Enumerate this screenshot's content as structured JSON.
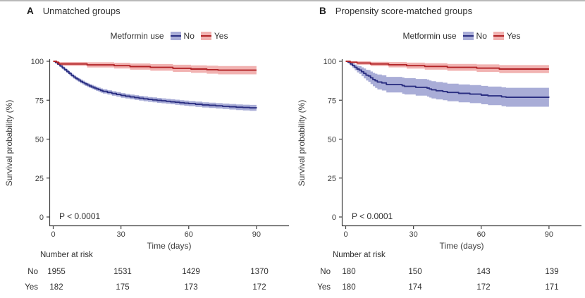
{
  "colors": {
    "no_line": "#2b2f82",
    "no_band": "#a9add7",
    "yes_line": "#b22427",
    "yes_band": "#f1b2b1",
    "text": "#3d3d3d",
    "axis": "#404040"
  },
  "legend": {
    "title": "Metformin use",
    "items": [
      {
        "label": "No"
      },
      {
        "label": "Yes"
      }
    ]
  },
  "panels": [
    {
      "label": "A",
      "title": "Unmatched groups",
      "p_value": "P < 0.0001",
      "risk": {
        "header": "Number at risk",
        "rows": [
          {
            "label": "No",
            "values": [
              "1955",
              "1531",
              "1429",
              "1370"
            ]
          },
          {
            "label": "Yes",
            "values": [
              "182",
              "175",
              "173",
              "172"
            ]
          }
        ]
      }
    },
    {
      "label": "B",
      "title": "Propensity score-matched groups",
      "p_value": "P < 0.0001",
      "risk": {
        "header": "Number at risk",
        "rows": [
          {
            "label": "No",
            "values": [
              "180",
              "150",
              "143",
              "139"
            ]
          },
          {
            "label": "Yes",
            "values": [
              "180",
              "174",
              "172",
              "171"
            ]
          }
        ]
      }
    }
  ],
  "chart_data": [
    {
      "type": "line",
      "subtype": "kaplan-meier-step",
      "title": "Unmatched groups",
      "xlabel": "Time (days)",
      "ylabel": "Survival probability (%)",
      "xlim": [
        0,
        90
      ],
      "ylim": [
        0,
        100
      ],
      "x_ticks": [
        0,
        30,
        60,
        90
      ],
      "y_ticks": [
        0,
        25,
        50,
        75,
        100
      ],
      "p_value": "P < 0.0001",
      "grid": false,
      "legend_position": "top",
      "series": [
        {
          "name": "No",
          "line_color": "#2b2f82",
          "band_color": "#a9add7",
          "steps": [
            [
              0,
              100
            ],
            [
              1,
              99.2
            ],
            [
              2,
              98.2
            ],
            [
              3,
              97
            ],
            [
              4,
              95.8
            ],
            [
              5,
              94.6
            ],
            [
              6,
              93.4
            ],
            [
              7,
              92.2
            ],
            [
              8,
              91
            ],
            [
              9,
              89.9
            ],
            [
              10,
              88.9
            ],
            [
              11,
              88
            ],
            [
              12,
              87.1
            ],
            [
              13,
              86.3
            ],
            [
              14,
              85.5
            ],
            [
              15,
              84.8
            ],
            [
              16,
              84.1
            ],
            [
              17,
              83.5
            ],
            [
              18,
              82.9
            ],
            [
              19,
              82.3
            ],
            [
              20,
              81.8
            ],
            [
              21,
              81.2
            ],
            [
              22,
              80.7
            ],
            [
              24,
              80
            ],
            [
              26,
              79.3
            ],
            [
              28,
              78.7
            ],
            [
              30,
              78.1
            ],
            [
              32,
              77.6
            ],
            [
              34,
              77.1
            ],
            [
              36,
              76.7
            ],
            [
              38,
              76.3
            ],
            [
              40,
              75.9
            ],
            [
              42,
              75.5
            ],
            [
              44,
              75.2
            ],
            [
              46,
              74.9
            ],
            [
              48,
              74.6
            ],
            [
              50,
              74.3
            ],
            [
              52,
              74
            ],
            [
              54,
              73.7
            ],
            [
              56,
              73.4
            ],
            [
              58,
              73.1
            ],
            [
              60,
              72.8
            ],
            [
              63,
              72.4
            ],
            [
              66,
              72
            ],
            [
              69,
              71.7
            ],
            [
              72,
              71.4
            ],
            [
              75,
              71.1
            ],
            [
              78,
              70.8
            ],
            [
              81,
              70.5
            ],
            [
              84,
              70.3
            ],
            [
              87,
              70.1
            ],
            [
              90,
              69.9
            ]
          ],
          "ci_half": [
            [
              0,
              0.2
            ],
            [
              3,
              0.8
            ],
            [
              8,
              1.1
            ],
            [
              15,
              1.3
            ],
            [
              30,
              1.5
            ],
            [
              50,
              1.6
            ],
            [
              70,
              1.7
            ],
            [
              90,
              1.9
            ]
          ]
        },
        {
          "name": "Yes",
          "line_color": "#b22427",
          "band_color": "#f1b2b1",
          "steps": [
            [
              0,
              100
            ],
            [
              1.5,
              99.3
            ],
            [
              2.5,
              98.3
            ],
            [
              15,
              97.7
            ],
            [
              27,
              97.2
            ],
            [
              34,
              96.6
            ],
            [
              43,
              96.1
            ],
            [
              53,
              95.5
            ],
            [
              61,
              95
            ],
            [
              68,
              94.6
            ],
            [
              73,
              94.3
            ],
            [
              90,
              94.3
            ]
          ],
          "ci_half": [
            [
              0,
              0.2
            ],
            [
              2,
              1.2
            ],
            [
              10,
              1.6
            ],
            [
              25,
              1.8
            ],
            [
              40,
              2.1
            ],
            [
              60,
              2.4
            ],
            [
              75,
              2.7
            ],
            [
              90,
              2.7
            ]
          ]
        }
      ]
    },
    {
      "type": "line",
      "subtype": "kaplan-meier-step",
      "title": "Propensity score-matched groups",
      "xlabel": "Time (days)",
      "ylabel": "Survival probability (%)",
      "xlim": [
        0,
        90
      ],
      "ylim": [
        0,
        100
      ],
      "x_ticks": [
        0,
        30,
        60,
        90
      ],
      "y_ticks": [
        0,
        25,
        50,
        75,
        100
      ],
      "p_value": "P < 0.0001",
      "grid": false,
      "legend_position": "top",
      "series": [
        {
          "name": "No",
          "line_color": "#2b2f82",
          "band_color": "#a9add7",
          "steps": [
            [
              0,
              100
            ],
            [
              1,
              99.4
            ],
            [
              2,
              98.3
            ],
            [
              3,
              97.2
            ],
            [
              4,
              96.1
            ],
            [
              5,
              95
            ],
            [
              6,
              94.4
            ],
            [
              7,
              93.3
            ],
            [
              8,
              92.2
            ],
            [
              9,
              91.1
            ],
            [
              10,
              90.6
            ],
            [
              11,
              89.4
            ],
            [
              12,
              88.3
            ],
            [
              13,
              87.5
            ],
            [
              14,
              86.7
            ],
            [
              16,
              86.1
            ],
            [
              18,
              85
            ],
            [
              25,
              84.4
            ],
            [
              26,
              83.9
            ],
            [
              31,
              83.3
            ],
            [
              36,
              82.8
            ],
            [
              37,
              82.2
            ],
            [
              38,
              81.7
            ],
            [
              40,
              81.1
            ],
            [
              43,
              80.6
            ],
            [
              45,
              80
            ],
            [
              50,
              79.4
            ],
            [
              55,
              78.9
            ],
            [
              60,
              78.3
            ],
            [
              63,
              77.8
            ],
            [
              69,
              77.2
            ],
            [
              71,
              76.9
            ],
            [
              90,
              76.7
            ]
          ],
          "ci_half": [
            [
              0,
              0.2
            ],
            [
              3,
              1.5
            ],
            [
              6,
              2.5
            ],
            [
              10,
              3.8
            ],
            [
              14,
              4.8
            ],
            [
              20,
              5.1
            ],
            [
              30,
              5.3
            ],
            [
              40,
              5.6
            ],
            [
              55,
              5.8
            ],
            [
              70,
              6.1
            ],
            [
              90,
              6.2
            ]
          ]
        },
        {
          "name": "Yes",
          "line_color": "#b22427",
          "band_color": "#f1b2b1",
          "steps": [
            [
              0,
              100
            ],
            [
              2,
              99.4
            ],
            [
              5,
              98.9
            ],
            [
              11,
              98.3
            ],
            [
              19,
              97.8
            ],
            [
              27,
              97.2
            ],
            [
              35,
              96.7
            ],
            [
              45,
              96.1
            ],
            [
              58,
              95.6
            ],
            [
              68,
              95
            ],
            [
              90,
              95
            ]
          ],
          "ci_half": [
            [
              0,
              0.2
            ],
            [
              5,
              1.1
            ],
            [
              15,
              1.6
            ],
            [
              30,
              2
            ],
            [
              50,
              2.3
            ],
            [
              70,
              2.6
            ],
            [
              90,
              2.8
            ]
          ]
        }
      ]
    }
  ]
}
